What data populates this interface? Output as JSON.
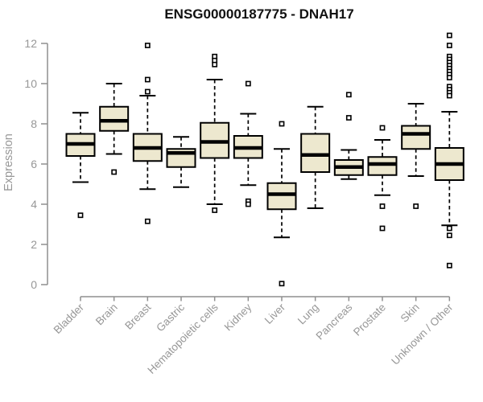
{
  "chart_data": {
    "type": "box",
    "title": "ENSG00000187775 - DNAH17",
    "ylabel": "Expression",
    "xlabel": "",
    "ylim": [
      0,
      12
    ],
    "yticks": [
      0,
      2,
      4,
      6,
      8,
      10,
      12
    ],
    "grid": false,
    "legend": "none",
    "categories": [
      "Bladder",
      "Brain",
      "Breast",
      "Gastric",
      "Hematopoietic cells",
      "Kidney",
      "Liver",
      "Lung",
      "Pancreas",
      "Prostate",
      "Skin",
      "Unknown / Other"
    ],
    "series": [
      {
        "name": "Bladder",
        "whisker_low": 5.1,
        "q1": 6.4,
        "median": 7.0,
        "q3": 7.5,
        "whisker_high": 8.55,
        "outliers": [
          3.45
        ]
      },
      {
        "name": "Brain",
        "whisker_low": 6.5,
        "q1": 7.65,
        "median": 8.15,
        "q3": 8.85,
        "whisker_high": 10.0,
        "outliers": [
          5.6
        ]
      },
      {
        "name": "Breast",
        "whisker_low": 4.75,
        "q1": 6.15,
        "median": 6.8,
        "q3": 7.5,
        "whisker_high": 9.4,
        "outliers": [
          11.9,
          10.2,
          9.6,
          3.15
        ]
      },
      {
        "name": "Gastric",
        "whisker_low": 4.85,
        "q1": 5.85,
        "median": 6.55,
        "q3": 6.75,
        "whisker_high": 7.35,
        "outliers": []
      },
      {
        "name": "Hematopoietic cells",
        "whisker_low": 4.0,
        "q1": 6.3,
        "median": 7.1,
        "q3": 8.05,
        "whisker_high": 10.2,
        "outliers": [
          11.35,
          11.15,
          10.95,
          3.7
        ]
      },
      {
        "name": "Kidney",
        "whisker_low": 4.95,
        "q1": 6.3,
        "median": 6.8,
        "q3": 7.4,
        "whisker_high": 8.5,
        "outliers": [
          10.0,
          4.15,
          4.0
        ]
      },
      {
        "name": "Liver",
        "whisker_low": 2.35,
        "q1": 3.75,
        "median": 4.5,
        "q3": 5.05,
        "whisker_high": 6.75,
        "outliers": [
          8.0,
          0.05
        ]
      },
      {
        "name": "Lung",
        "whisker_low": 3.8,
        "q1": 5.6,
        "median": 6.45,
        "q3": 7.5,
        "whisker_high": 8.85,
        "outliers": []
      },
      {
        "name": "Pancreas",
        "whisker_low": 5.25,
        "q1": 5.45,
        "median": 5.85,
        "q3": 6.2,
        "whisker_high": 6.7,
        "outliers": [
          9.45,
          8.3
        ]
      },
      {
        "name": "Prostate",
        "whisker_low": 4.45,
        "q1": 5.45,
        "median": 6.0,
        "q3": 6.35,
        "whisker_high": 7.2,
        "outliers": [
          7.8,
          3.9,
          2.8
        ]
      },
      {
        "name": "Skin",
        "whisker_low": 5.4,
        "q1": 6.75,
        "median": 7.5,
        "q3": 7.9,
        "whisker_high": 9.0,
        "outliers": [
          3.9
        ]
      },
      {
        "name": "Unknown / Other",
        "whisker_low": 2.95,
        "q1": 5.2,
        "median": 6.0,
        "q3": 6.8,
        "whisker_high": 8.6,
        "outliers": [
          12.4,
          11.9,
          11.35,
          11.2,
          11.05,
          10.9,
          10.75,
          10.6,
          10.45,
          10.3,
          9.85,
          9.7,
          9.55,
          9.4,
          2.8,
          2.45,
          0.95
        ]
      }
    ],
    "colors": {
      "box_fill": "#EDE8CF",
      "box_border": "#000000",
      "median": "#000000",
      "whisker": "#000000",
      "outlier_fill": "#ffffff",
      "outlier_border": "#000000",
      "axis_line": "#8f8f8f",
      "tick_label": "#979797",
      "title": "#111111"
    }
  }
}
